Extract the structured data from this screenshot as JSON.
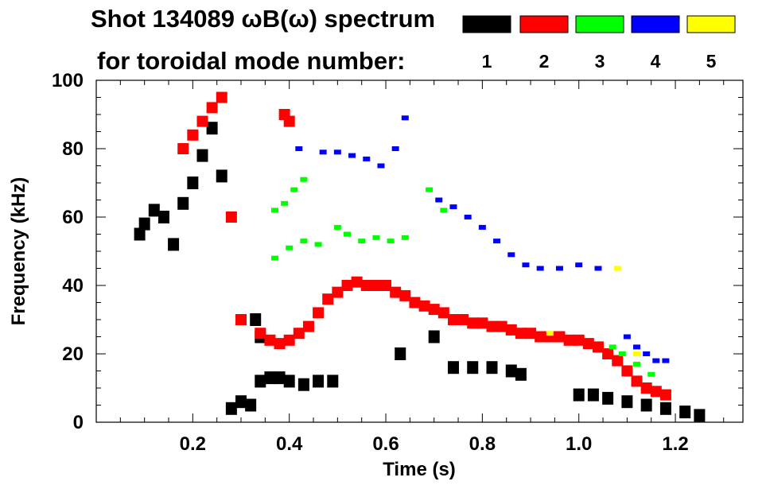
{
  "chart_data": {
    "type": "heatmap",
    "title": "Shot 134089 ωB(ω) spectrum",
    "legend_title": "for toroidal mode number:",
    "legend": [
      {
        "label": "1",
        "color": "#000000"
      },
      {
        "label": "2",
        "color": "#ff0000"
      },
      {
        "label": "3",
        "color": "#00ff00"
      },
      {
        "label": "4",
        "color": "#0000ff"
      },
      {
        "label": "5",
        "color": "#ffff00"
      }
    ],
    "xlabel": "Time (s)",
    "ylabel": "Frequency (kHz)",
    "xlim": [
      0.0,
      1.34
    ],
    "ylim": [
      0,
      100
    ],
    "x_ticks": [
      "0.2",
      "0.4",
      "0.6",
      "0.8",
      "1.0",
      "1.2"
    ],
    "x_tick_values": [
      0.2,
      0.4,
      0.6,
      0.8,
      1.0,
      1.2
    ],
    "y_ticks": [
      "0",
      "20",
      "40",
      "60",
      "80",
      "100"
    ],
    "y_tick_values": [
      0,
      20,
      40,
      60,
      80,
      100
    ],
    "grid": false,
    "series": [
      {
        "name": "1",
        "color": "#000000",
        "points": [
          [
            0.09,
            55
          ],
          [
            0.1,
            58
          ],
          [
            0.12,
            62
          ],
          [
            0.14,
            60
          ],
          [
            0.16,
            52
          ],
          [
            0.18,
            64
          ],
          [
            0.2,
            70
          ],
          [
            0.22,
            78
          ],
          [
            0.24,
            86
          ],
          [
            0.26,
            72
          ],
          [
            0.28,
            4
          ],
          [
            0.3,
            6
          ],
          [
            0.32,
            5
          ],
          [
            0.34,
            12
          ],
          [
            0.36,
            13
          ],
          [
            0.38,
            13
          ],
          [
            0.4,
            12
          ],
          [
            0.43,
            11
          ],
          [
            0.46,
            12
          ],
          [
            0.49,
            12
          ],
          [
            0.33,
            30
          ],
          [
            0.34,
            25
          ],
          [
            0.63,
            20
          ],
          [
            0.7,
            25
          ],
          [
            0.74,
            16
          ],
          [
            0.78,
            16
          ],
          [
            0.82,
            16
          ],
          [
            0.86,
            15
          ],
          [
            0.88,
            14
          ],
          [
            1.0,
            8
          ],
          [
            1.03,
            8
          ],
          [
            1.06,
            7
          ],
          [
            1.1,
            6
          ],
          [
            1.14,
            5
          ],
          [
            1.18,
            4
          ],
          [
            1.22,
            3
          ],
          [
            1.25,
            2
          ]
        ]
      },
      {
        "name": "2",
        "color": "#ff0000",
        "points": [
          [
            0.18,
            80
          ],
          [
            0.2,
            84
          ],
          [
            0.22,
            88
          ],
          [
            0.24,
            92
          ],
          [
            0.26,
            95
          ],
          [
            0.28,
            60
          ],
          [
            0.3,
            30
          ],
          [
            0.34,
            26
          ],
          [
            0.36,
            24
          ],
          [
            0.38,
            23
          ],
          [
            0.4,
            24
          ],
          [
            0.42,
            26
          ],
          [
            0.44,
            28
          ],
          [
            0.46,
            32
          ],
          [
            0.48,
            36
          ],
          [
            0.5,
            38
          ],
          [
            0.52,
            40
          ],
          [
            0.54,
            41
          ],
          [
            0.56,
            40
          ],
          [
            0.58,
            40
          ],
          [
            0.6,
            40
          ],
          [
            0.62,
            38
          ],
          [
            0.64,
            37
          ],
          [
            0.66,
            35
          ],
          [
            0.68,
            34
          ],
          [
            0.7,
            33
          ],
          [
            0.72,
            32
          ],
          [
            0.74,
            30
          ],
          [
            0.76,
            30
          ],
          [
            0.78,
            29
          ],
          [
            0.8,
            29
          ],
          [
            0.82,
            28
          ],
          [
            0.84,
            28
          ],
          [
            0.86,
            27
          ],
          [
            0.88,
            26
          ],
          [
            0.9,
            26
          ],
          [
            0.92,
            25
          ],
          [
            0.94,
            25
          ],
          [
            0.96,
            25
          ],
          [
            0.98,
            24
          ],
          [
            1.0,
            24
          ],
          [
            1.02,
            23
          ],
          [
            1.04,
            22
          ],
          [
            1.06,
            20
          ],
          [
            1.08,
            18
          ],
          [
            1.1,
            15
          ],
          [
            1.12,
            12
          ],
          [
            1.14,
            10
          ],
          [
            1.16,
            9
          ],
          [
            1.18,
            8
          ],
          [
            0.39,
            90
          ],
          [
            0.4,
            88
          ]
        ]
      },
      {
        "name": "3",
        "color": "#00ff00",
        "points": [
          [
            0.37,
            62
          ],
          [
            0.39,
            64
          ],
          [
            0.41,
            68
          ],
          [
            0.43,
            71
          ],
          [
            0.37,
            48
          ],
          [
            0.4,
            51
          ],
          [
            0.43,
            53
          ],
          [
            0.46,
            52
          ],
          [
            0.5,
            57
          ],
          [
            0.52,
            55
          ],
          [
            0.55,
            53
          ],
          [
            0.58,
            54
          ],
          [
            0.61,
            53
          ],
          [
            0.64,
            54
          ],
          [
            0.69,
            68
          ],
          [
            0.72,
            62
          ],
          [
            1.07,
            22
          ],
          [
            1.09,
            20
          ],
          [
            1.12,
            17
          ],
          [
            1.15,
            14
          ]
        ]
      },
      {
        "name": "4",
        "color": "#0000ff",
        "points": [
          [
            0.42,
            80
          ],
          [
            0.47,
            79
          ],
          [
            0.5,
            79
          ],
          [
            0.53,
            78
          ],
          [
            0.56,
            77
          ],
          [
            0.59,
            75
          ],
          [
            0.62,
            80
          ],
          [
            0.64,
            89
          ],
          [
            0.71,
            65
          ],
          [
            0.74,
            63
          ],
          [
            0.77,
            60
          ],
          [
            0.8,
            57
          ],
          [
            0.83,
            53
          ],
          [
            0.86,
            49
          ],
          [
            0.89,
            46
          ],
          [
            0.92,
            45
          ],
          [
            0.96,
            45
          ],
          [
            1.0,
            46
          ],
          [
            1.04,
            45
          ],
          [
            1.1,
            25
          ],
          [
            1.12,
            22
          ],
          [
            1.14,
            20
          ],
          [
            1.16,
            18
          ],
          [
            1.18,
            18
          ]
        ]
      },
      {
        "name": "5",
        "color": "#ffff00",
        "points": [
          [
            1.08,
            45
          ],
          [
            0.94,
            26
          ],
          [
            1.12,
            20
          ]
        ]
      }
    ]
  }
}
